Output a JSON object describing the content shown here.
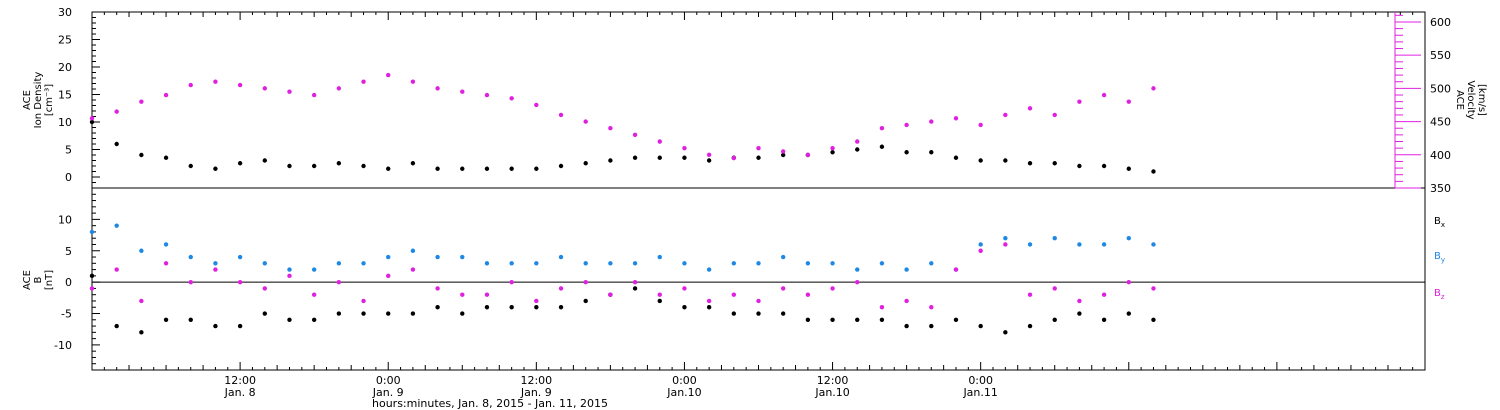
{
  "chart_data": [
    {
      "type": "scatter",
      "panel": "top",
      "ylabel_lines": [
        "ACE",
        "Ion Density",
        "[cm⁻³]"
      ],
      "ylim": [
        -2,
        30
      ],
      "yticks": [
        0,
        5,
        10,
        15,
        20,
        25,
        30
      ],
      "y2label_lines": [
        "ACE",
        "Velocity",
        "[km/s]"
      ],
      "y2lim": [
        350,
        615
      ],
      "y2ticks": [
        350,
        400,
        450,
        500,
        550,
        600
      ],
      "y2_color": "#e020e0",
      "series": [
        {
          "axis": "left",
          "color": "#000000",
          "x": [
            0,
            2,
            4,
            6,
            8,
            10,
            12,
            14,
            16,
            18,
            20,
            22,
            24,
            26,
            28,
            30,
            32,
            34,
            36,
            38,
            40,
            42,
            44,
            46,
            48,
            50,
            52,
            54,
            56,
            58,
            60,
            62,
            64,
            66,
            68,
            70,
            72,
            74,
            76,
            78,
            80,
            82,
            84,
            86
          ],
          "values": [
            10,
            6,
            4,
            3.5,
            2,
            1.5,
            2.5,
            3,
            2,
            2,
            2.5,
            2,
            1.5,
            2.5,
            1.5,
            1.5,
            1.5,
            1.5,
            1.5,
            2,
            2.5,
            3,
            3.5,
            3.5,
            3.5,
            3,
            3.5,
            3.5,
            4,
            4,
            4.5,
            5,
            5.5,
            4.5,
            4.5,
            3.5,
            3,
            3,
            2.5,
            2.5,
            2,
            2,
            1.5,
            1
          ]
        },
        {
          "axis": "right",
          "color": "#e020e0",
          "x": [
            0,
            2,
            4,
            6,
            8,
            10,
            12,
            14,
            16,
            18,
            20,
            22,
            24,
            26,
            28,
            30,
            32,
            34,
            36,
            38,
            40,
            42,
            44,
            46,
            48,
            50,
            52,
            54,
            56,
            58,
            60,
            62,
            64,
            66,
            68,
            70,
            72,
            74,
            76,
            78,
            80,
            82,
            84,
            86
          ],
          "values": [
            455,
            465,
            480,
            490,
            505,
            510,
            505,
            500,
            495,
            490,
            500,
            510,
            520,
            510,
            500,
            495,
            490,
            485,
            475,
            460,
            450,
            440,
            430,
            420,
            410,
            400,
            395,
            410,
            405,
            400,
            410,
            420,
            440,
            445,
            450,
            455,
            445,
            460,
            470,
            460,
            480,
            490,
            480,
            500
          ]
        }
      ]
    },
    {
      "type": "scatter",
      "panel": "bottom",
      "ylabel_lines": [
        "ACE",
        "B",
        "[nT]"
      ],
      "ylim": [
        -14,
        15
      ],
      "yticks": [
        -10,
        -5,
        0,
        5,
        10
      ],
      "zero_line": true,
      "xlabel": "hours:minutes, Jan.  8, 2015 - Jan. 11, 2015",
      "xlim": [
        0,
        108
      ],
      "xticks": [
        {
          "x": 12,
          "line1": "12:00",
          "line2": "Jan. 8"
        },
        {
          "x": 24,
          "line1": "0:00",
          "line2": "Jan. 9"
        },
        {
          "x": 36,
          "line1": "12:00",
          "line2": "Jan. 9"
        },
        {
          "x": 48,
          "line1": "0:00",
          "line2": "Jan.10"
        },
        {
          "x": 60,
          "line1": "12:00",
          "line2": "Jan.10"
        },
        {
          "x": 72,
          "line1": "0:00",
          "line2": "Jan.11"
        }
      ],
      "series": [
        {
          "name": "Bx",
          "color": "#000000",
          "x": [
            0,
            2,
            4,
            6,
            8,
            10,
            12,
            14,
            16,
            18,
            20,
            22,
            24,
            26,
            28,
            30,
            32,
            34,
            36,
            38,
            40,
            42,
            44,
            46,
            48,
            50,
            52,
            54,
            56,
            58,
            60,
            62,
            64,
            66,
            68,
            70,
            72,
            74,
            76,
            78,
            80,
            82,
            84,
            86
          ],
          "values": [
            1,
            -7,
            -8,
            -6,
            -6,
            -7,
            -7,
            -5,
            -6,
            -6,
            -5,
            -5,
            -5,
            -5,
            -4,
            -5,
            -4,
            -4,
            -4,
            -4,
            -3,
            -2,
            -1,
            -3,
            -4,
            -4,
            -5,
            -5,
            -5,
            -6,
            -6,
            -6,
            -6,
            -7,
            -7,
            -6,
            -7,
            -8,
            -7,
            -6,
            -5,
            -6,
            -5,
            -6
          ]
        },
        {
          "name": "By",
          "color": "#1e88e5",
          "x": [
            0,
            2,
            4,
            6,
            8,
            10,
            12,
            14,
            16,
            18,
            20,
            22,
            24,
            26,
            28,
            30,
            32,
            34,
            36,
            38,
            40,
            42,
            44,
            46,
            48,
            50,
            52,
            54,
            56,
            58,
            60,
            62,
            64,
            66,
            68,
            70,
            72,
            74,
            76,
            78,
            80,
            82,
            84,
            86
          ],
          "values": [
            8,
            9,
            5,
            6,
            4,
            3,
            4,
            3,
            2,
            2,
            3,
            3,
            4,
            5,
            4,
            4,
            3,
            3,
            3,
            4,
            3,
            3,
            3,
            4,
            3,
            2,
            3,
            3,
            4,
            3,
            3,
            2,
            3,
            2,
            3,
            2,
            6,
            7,
            6,
            7,
            6,
            6,
            7,
            6
          ]
        },
        {
          "name": "Bz",
          "color": "#e020e0",
          "x": [
            0,
            2,
            4,
            6,
            8,
            10,
            12,
            14,
            16,
            18,
            20,
            22,
            24,
            26,
            28,
            30,
            32,
            34,
            36,
            38,
            40,
            42,
            44,
            46,
            48,
            50,
            52,
            54,
            56,
            58,
            60,
            62,
            64,
            66,
            68,
            70,
            72,
            74,
            76,
            78,
            80,
            82,
            84,
            86
          ],
          "values": [
            -1,
            2,
            -3,
            3,
            0,
            2,
            0,
            -1,
            1,
            -2,
            0,
            -3,
            1,
            2,
            -1,
            -2,
            -2,
            0,
            -3,
            -1,
            0,
            -2,
            0,
            -2,
            -1,
            -3,
            -2,
            -3,
            -1,
            -2,
            -1,
            0,
            -4,
            -3,
            -4,
            2,
            5,
            6,
            -2,
            -1,
            -3,
            -2,
            0,
            -1
          ]
        }
      ],
      "legend_placement": "right"
    }
  ]
}
